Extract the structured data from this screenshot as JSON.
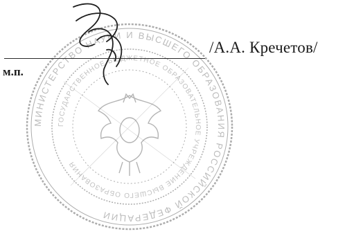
{
  "signature_block": {
    "signer_name": "/А.А. Кречетов/",
    "seal_mark": "м.п."
  },
  "stamp": {
    "ring_text": "МИНИСТЕРСТВО НАУКИ И ВЫСШЕГО ОБРАЗОВАНИЯ РОССИЙСКОЙ ФЕДЕРАЦИИ",
    "inner_text": "ГОСУДАРСТВЕННОЕ БЮДЖЕТНОЕ ОБРАЗОВАТЕЛЬНОЕ УЧРЕЖДЕНИЕ ВЫСШЕГО ОБРАЗОВАНИЯ",
    "ink_color": "#5a5a5a"
  },
  "ink_color": "#1a1a1a"
}
